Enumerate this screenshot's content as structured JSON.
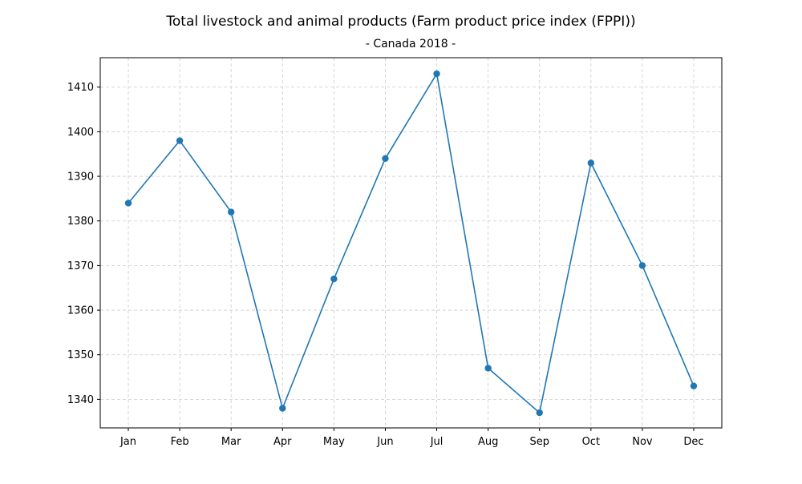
{
  "chart_data": {
    "type": "line",
    "title": "Total livestock and animal products (Farm product price index (FPPI))",
    "subtitle": "- Canada 2018 -",
    "xlabel": "",
    "ylabel": "",
    "categories": [
      "Jan",
      "Feb",
      "Mar",
      "Apr",
      "May",
      "Jun",
      "Jul",
      "Aug",
      "Sep",
      "Oct",
      "Nov",
      "Dec"
    ],
    "series": [
      {
        "values": [
          1384,
          1398,
          1382,
          1338,
          1367,
          1394,
          1413,
          1347,
          1337,
          1393,
          1370,
          1343
        ]
      }
    ],
    "ylim": [
      1333.6,
      1416.6
    ],
    "yticks": [
      1340,
      1350,
      1360,
      1370,
      1380,
      1390,
      1400,
      1410
    ],
    "grid": true,
    "legend": "none",
    "colors": {
      "line": "#1f77b4",
      "grid": "#cccccc",
      "axes": "#000000"
    }
  }
}
